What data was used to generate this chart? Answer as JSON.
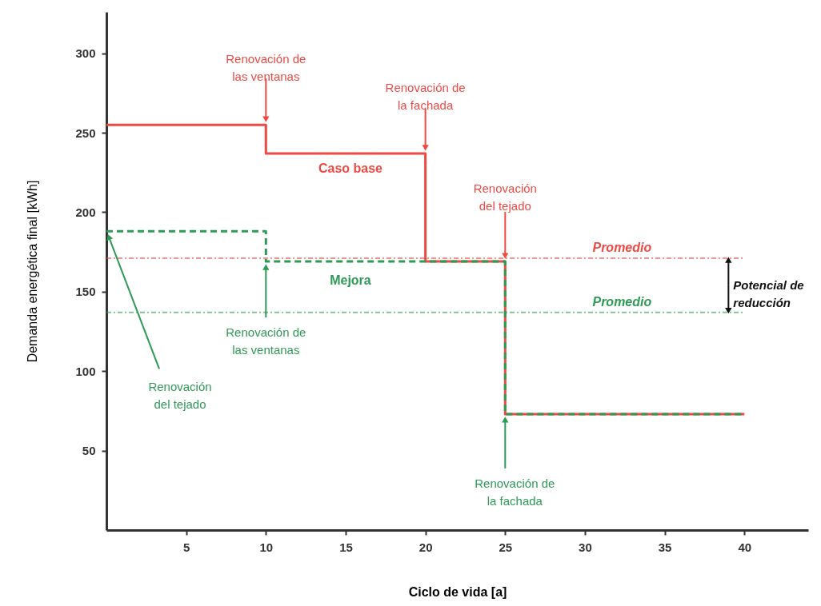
{
  "chart_data": {
    "type": "step",
    "xlabel": "Ciclo de vida [a]",
    "ylabel": "Demanda energética final [kWh]",
    "x": [
      0,
      10,
      20,
      25,
      40
    ],
    "series": [
      {
        "name": "Caso base",
        "color": "#ee4a44",
        "values": [
          255,
          237,
          169,
          73,
          73
        ]
      },
      {
        "name": "Mejora",
        "color": "#2e9a55",
        "line_style": "dashed",
        "values": [
          188,
          169,
          169,
          73,
          73
        ]
      }
    ],
    "xlim": [
      0,
      44
    ],
    "ylim": [
      0,
      326
    ],
    "xticks": [
      5,
      10,
      15,
      20,
      25,
      30,
      35,
      40
    ],
    "yticks": [
      50,
      100,
      150,
      200,
      250,
      300
    ],
    "ref_lines": [
      {
        "axis": "y",
        "value": 171,
        "label": "Promedio",
        "color": "#ee4a44",
        "line_style": "dashed"
      },
      {
        "axis": "y",
        "value": 137,
        "label": "Promedio",
        "color": "#2e9a55",
        "line_style": "dashed"
      }
    ],
    "annotations": [
      {
        "text": "Renovación de\nlas ventanas",
        "x": 10,
        "y": 255
      },
      {
        "text": "Renovación de\nla fachada",
        "x": 20,
        "y": 237
      },
      {
        "text": "Renovación\ndel tejado",
        "x": 25,
        "y": 169
      },
      {
        "text": "Renovación de\nlas ventanas",
        "x": 10,
        "y": 169
      },
      {
        "text": "Renovación\ndel tejado",
        "x": 0,
        "y": 188
      },
      {
        "text": "Renovación de\nla fachada",
        "x": 25,
        "y": 73
      },
      {
        "text": "Potencial de\nreducción",
        "x": 39,
        "y": 171
      }
    ],
    "grid": false,
    "marker": "none",
    "line_style": "solid"
  }
}
